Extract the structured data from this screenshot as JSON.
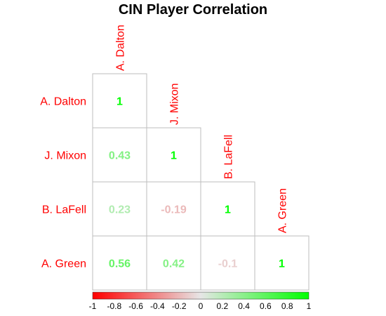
{
  "chart_data": {
    "type": "heatmap",
    "title": "CIN Player Correlation",
    "layout": "lower-triangle correlation matrix",
    "players": [
      "A. Dalton",
      "J. Mixon",
      "B. LaFell",
      "A. Green"
    ],
    "matrix": [
      [
        1,
        null,
        null,
        null
      ],
      [
        0.43,
        1,
        null,
        null
      ],
      [
        0.23,
        -0.19,
        1,
        null
      ],
      [
        0.56,
        0.42,
        -0.1,
        1
      ]
    ],
    "value_labels": [
      [
        "1",
        "",
        "",
        ""
      ],
      [
        "0.43",
        "1",
        "",
        ""
      ],
      [
        "0.23",
        "-0.19",
        "1",
        ""
      ],
      [
        "0.56",
        "0.42",
        "-0.1",
        "1"
      ]
    ],
    "color_scale": {
      "low": "#ff0000",
      "mid": "#e6e6e6",
      "high": "#00ff00",
      "range": [
        -1,
        1
      ]
    },
    "colorbar_ticks": [
      "-1",
      "-0.8",
      "-0.6",
      "-0.4",
      "-0.2",
      "0",
      "0.2",
      "0.4",
      "0.6",
      "0.8",
      "1"
    ],
    "label_color": "#ff0000",
    "grid": true
  }
}
